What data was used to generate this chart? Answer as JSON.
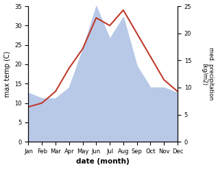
{
  "months": [
    "Jan",
    "Feb",
    "Mar",
    "Apr",
    "May",
    "Jun",
    "Jul",
    "Aug",
    "Sep",
    "Oct",
    "Nov",
    "Dec"
  ],
  "temperature": [
    9,
    10,
    13,
    19,
    24,
    32,
    30,
    34,
    28,
    22,
    16,
    13
  ],
  "precipitation": [
    9,
    8,
    8,
    10,
    17,
    25,
    19,
    23,
    14,
    10,
    10,
    9
  ],
  "temp_color": "#c0392b",
  "precip_color": "#b8c9e8",
  "temp_ylim": [
    0,
    35
  ],
  "precip_ylim": [
    0,
    25
  ],
  "temp_yticks": [
    0,
    5,
    10,
    15,
    20,
    25,
    30,
    35
  ],
  "precip_yticks": [
    0,
    5,
    10,
    15,
    20,
    25
  ],
  "xlabel": "date (month)",
  "ylabel_left": "max temp (C)",
  "ylabel_right": "med. precipitation\n(kg/m2)",
  "fig_width": 3.18,
  "fig_height": 2.47,
  "dpi": 100
}
